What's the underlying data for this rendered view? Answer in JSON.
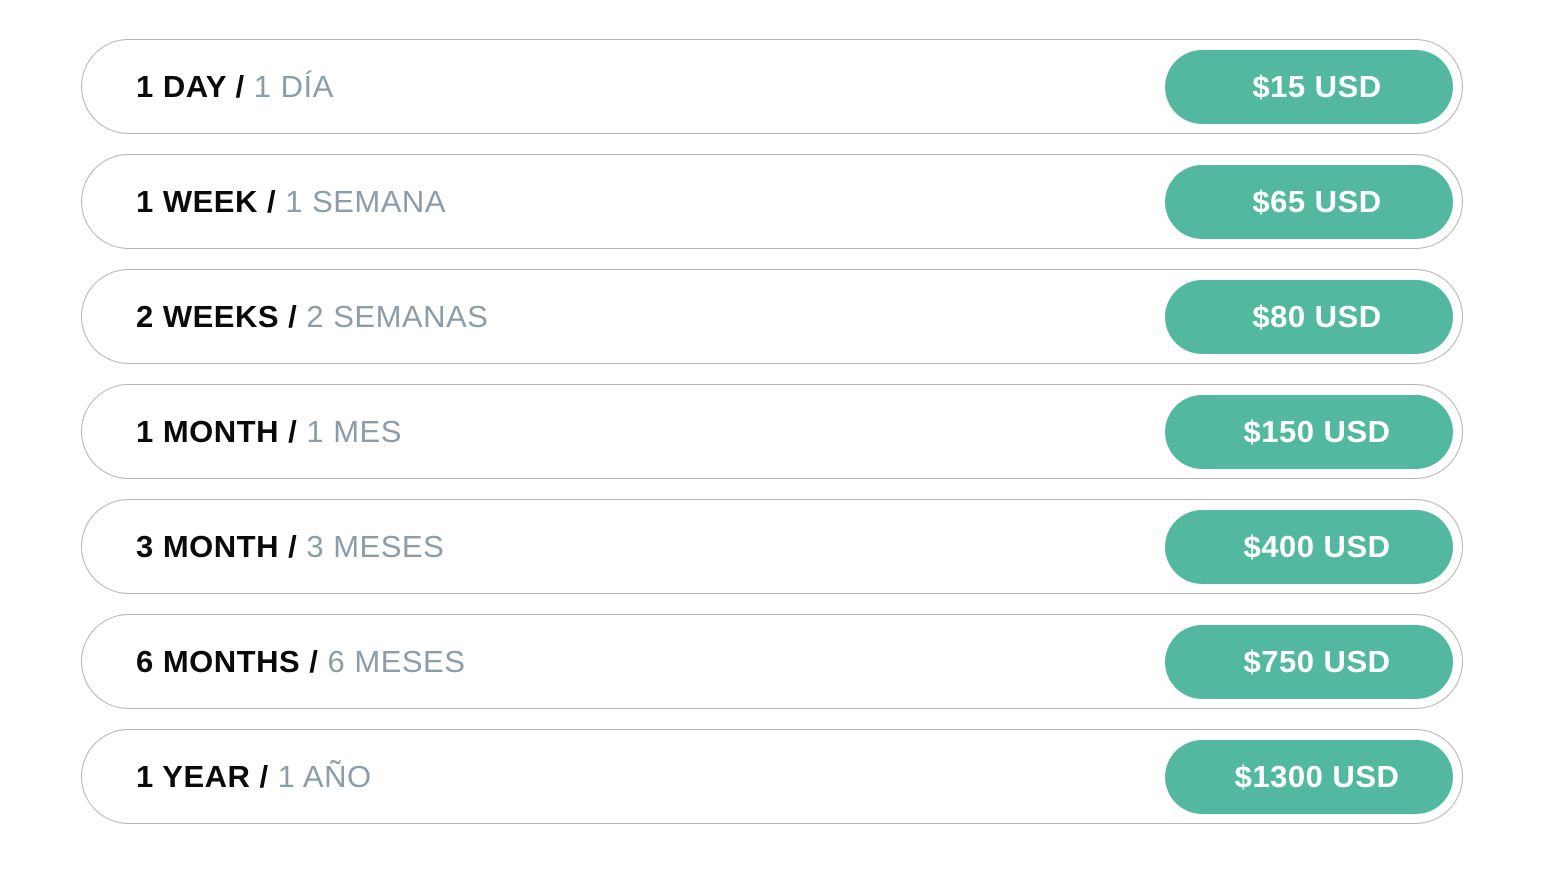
{
  "accent_color": "#52b9a0",
  "plans": [
    {
      "en": "1 DAY /",
      "es": "1 DÍA",
      "price": "$15 USD"
    },
    {
      "en": "1 WEEK /",
      "es": "1 SEMANA",
      "price": "$65 USD"
    },
    {
      "en": "2 WEEKS /",
      "es": "2 SEMANAS",
      "price": "$80 USD"
    },
    {
      "en": "1 MONTH /",
      "es": "1 MES",
      "price": "$150 USD"
    },
    {
      "en": "3 MONTH /",
      "es": "3 MESES",
      "price": "$400 USD"
    },
    {
      "en": "6 MONTHS /",
      "es": "6 MESES",
      "price": "$750 USD"
    },
    {
      "en": "1 YEAR /",
      "es": "1 AÑO",
      "price": "$1300 USD"
    }
  ]
}
